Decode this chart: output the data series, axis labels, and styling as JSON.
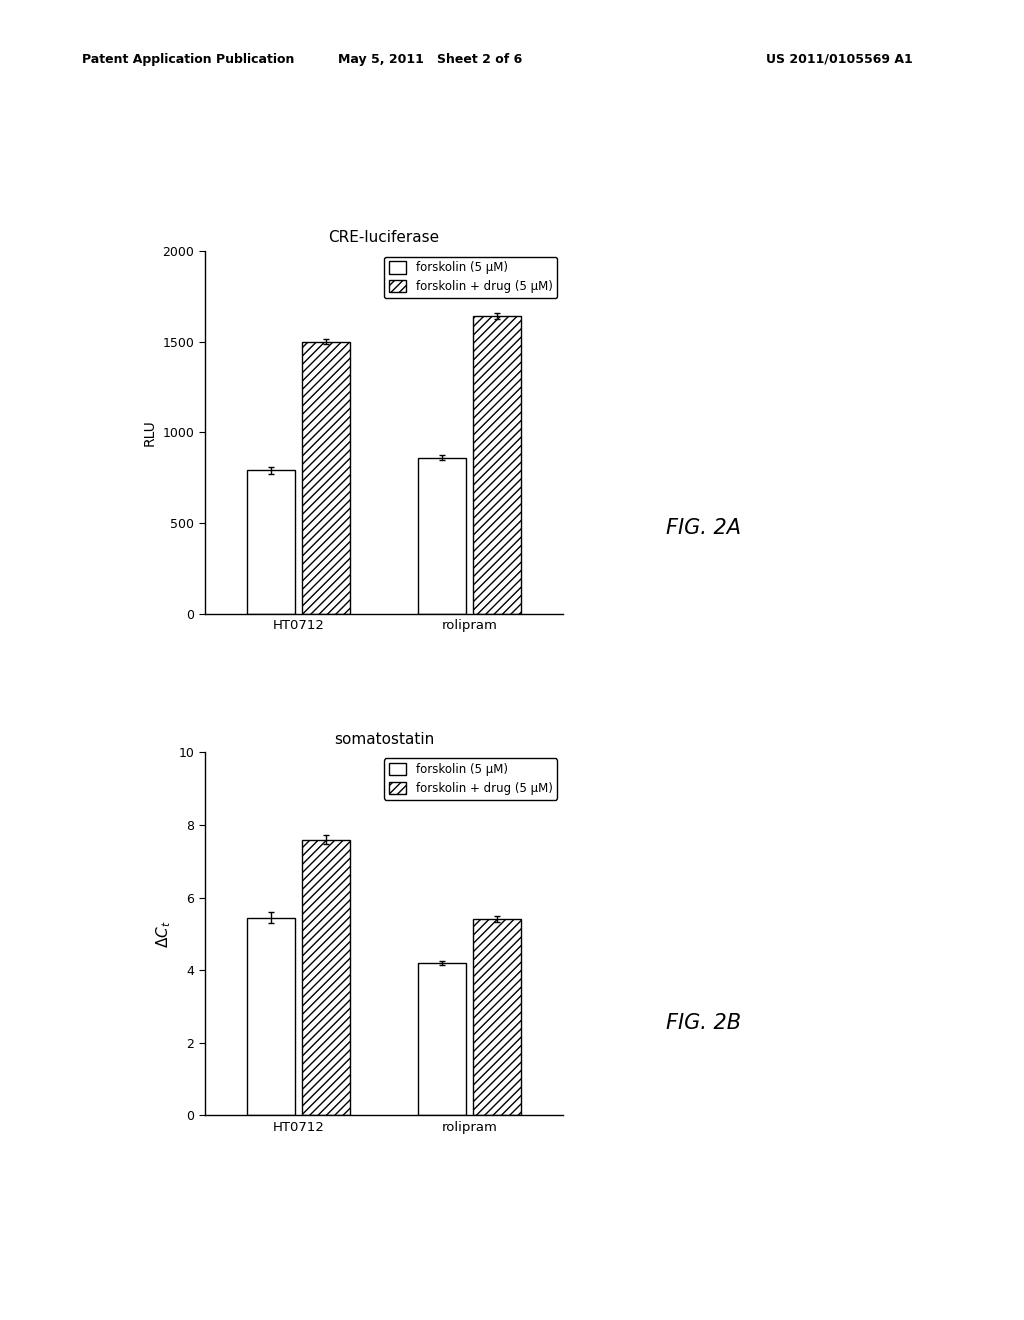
{
  "fig_width": 10.24,
  "fig_height": 13.2,
  "background_color": "#ffffff",
  "header_left": "Patent Application Publication",
  "header_mid": "May 5, 2011   Sheet 2 of 6",
  "header_right": "US 2011/0105569 A1",
  "chart1": {
    "title": "CRE-luciferase",
    "ylabel": "RLU",
    "ylim": [
      0,
      2000
    ],
    "yticks": [
      0,
      500,
      1000,
      1500,
      2000
    ],
    "categories": [
      "HT0712",
      "rolipram"
    ],
    "bar1_values": [
      790,
      860
    ],
    "bar2_values": [
      1500,
      1640
    ],
    "bar1_errors": [
      20,
      15
    ],
    "bar2_errors": [
      12,
      18
    ],
    "fig_label": "FIG. 2A",
    "legend1": "forskolin (5 μM)",
    "legend2": "forskolin + drug (5 μM)"
  },
  "chart2": {
    "title": "somatostatin",
    "ylim": [
      0,
      10
    ],
    "yticks": [
      0,
      2,
      4,
      6,
      8,
      10
    ],
    "categories": [
      "HT0712",
      "rolipram"
    ],
    "bar1_values": [
      5.45,
      4.2
    ],
    "bar2_values": [
      7.6,
      5.4
    ],
    "bar1_errors": [
      0.15,
      0.05
    ],
    "bar2_errors": [
      0.12,
      0.08
    ],
    "fig_label": "FIG. 2B",
    "legend1": "forskolin (5 μM)",
    "legend2": "forskolin + drug (5 μM)"
  },
  "bar_width": 0.28,
  "bar_gap": 0.04,
  "hatch_pattern": "////",
  "bar1_color": "#ffffff",
  "bar_edge_color": "#000000",
  "font_family": "DejaVu Sans"
}
